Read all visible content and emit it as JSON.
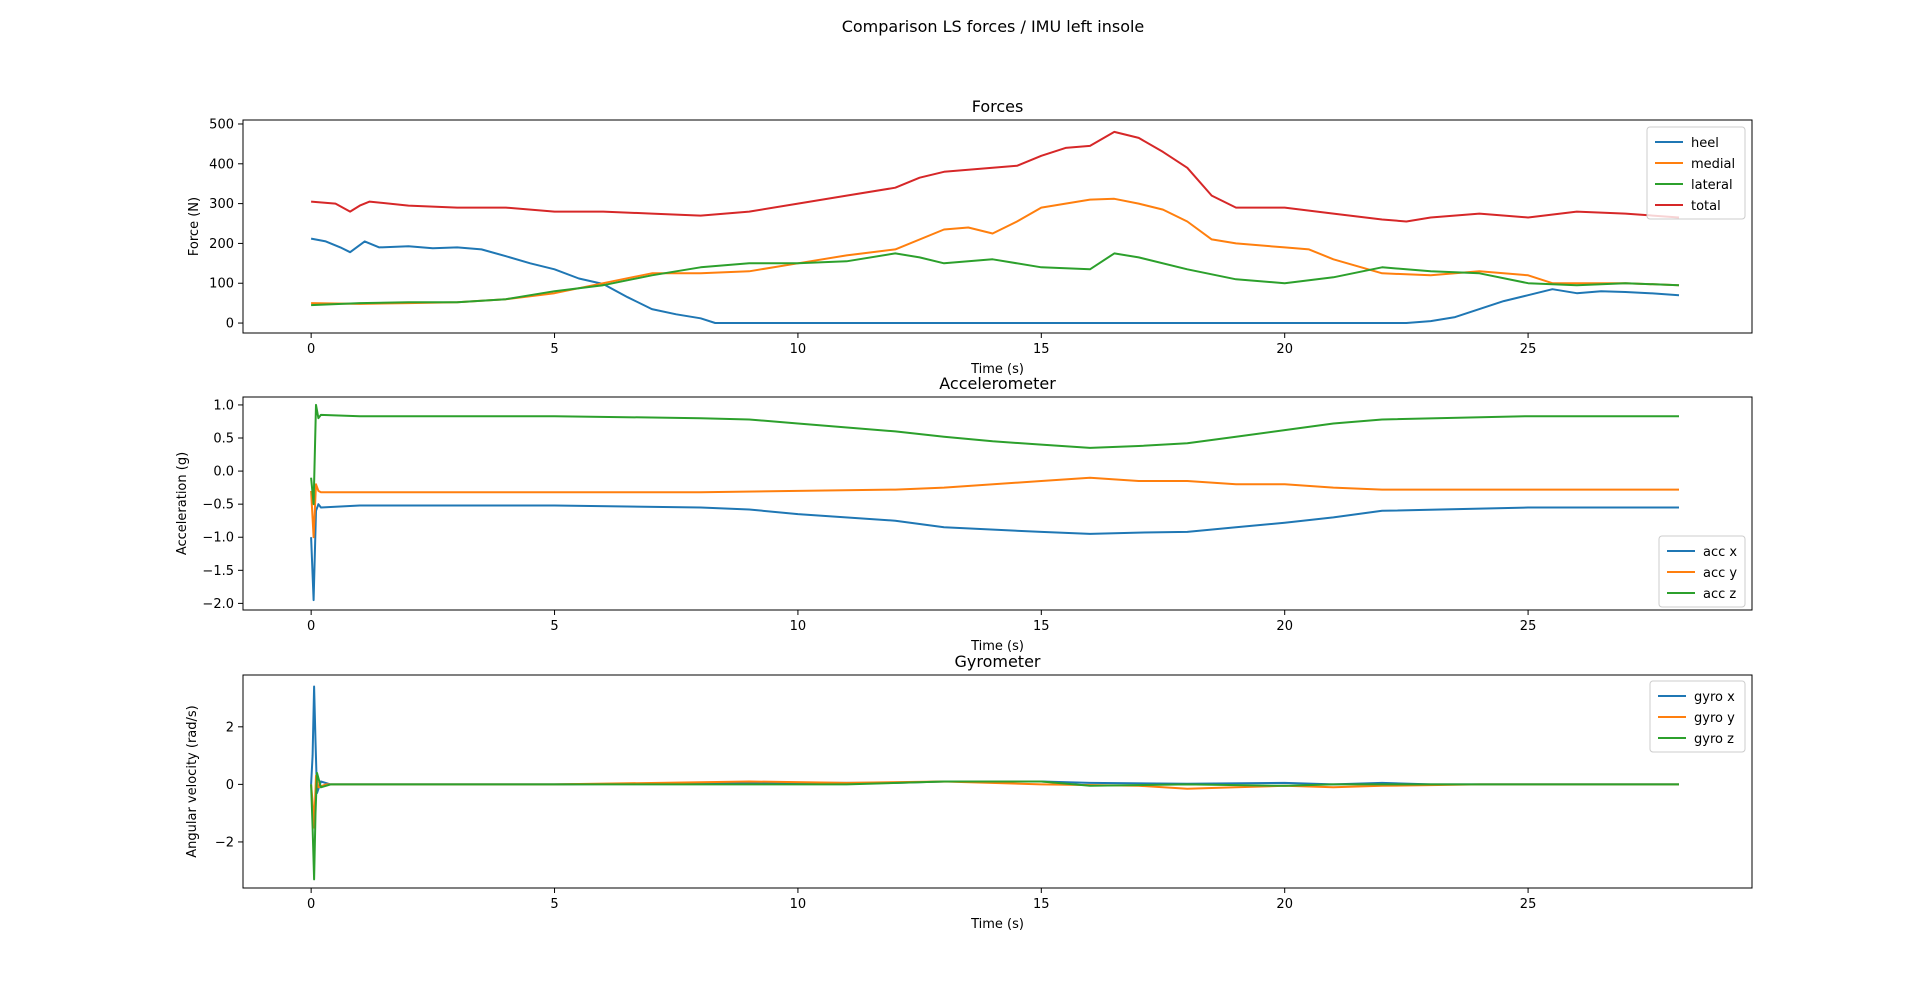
{
  "figure_title": "Comparison LS forces / IMU left insole",
  "colors": {
    "c0": "#1f77b4",
    "c1": "#ff7f0e",
    "c2": "#2ca02c",
    "c3": "#d62728"
  },
  "chart_data": [
    {
      "type": "line",
      "title": "Forces",
      "xlabel": "Time (s)",
      "ylabel": "Force (N)",
      "xlim": [
        -1.4,
        29.6
      ],
      "ylim": [
        -25,
        510
      ],
      "xticks": [
        0,
        5,
        10,
        15,
        20,
        25
      ],
      "yticks": [
        0,
        100,
        200,
        300,
        400,
        500
      ],
      "xtick_labels": [
        "0",
        "5",
        "10",
        "15",
        "20",
        "25"
      ],
      "ytick_labels": [
        "0",
        "100",
        "200",
        "300",
        "400",
        "500"
      ],
      "legend_position": "upper right",
      "series": [
        {
          "name": "heel",
          "color": "#1f77b4",
          "x": [
            0,
            0.3,
            0.6,
            0.8,
            1.1,
            1.4,
            2,
            2.5,
            3,
            3.5,
            4,
            4.5,
            5,
            5.5,
            6,
            6.5,
            7,
            7.5,
            8,
            8.3,
            10,
            15,
            20,
            22.5,
            23,
            23.5,
            24,
            24.5,
            25,
            25.5,
            26,
            26.5,
            27,
            27.5,
            28.1
          ],
          "y": [
            212,
            205,
            190,
            178,
            205,
            190,
            193,
            188,
            190,
            185,
            168,
            150,
            135,
            112,
            98,
            65,
            35,
            22,
            12,
            0,
            0,
            0,
            0,
            0,
            5,
            15,
            35,
            55,
            70,
            85,
            75,
            80,
            78,
            75,
            70
          ]
        },
        {
          "name": "medial",
          "color": "#ff7f0e",
          "x": [
            0,
            1,
            2,
            3,
            4,
            5,
            6,
            7,
            8,
            9,
            10,
            11,
            12,
            13,
            13.5,
            14,
            14.5,
            15,
            15.5,
            16,
            16.5,
            17,
            17.5,
            18,
            18.5,
            19,
            20,
            20.5,
            21,
            22,
            23,
            24,
            25,
            25.5,
            26,
            27,
            28.1
          ],
          "y": [
            50,
            48,
            50,
            52,
            60,
            75,
            100,
            125,
            125,
            130,
            150,
            170,
            185,
            235,
            240,
            225,
            255,
            290,
            300,
            310,
            312,
            300,
            285,
            255,
            210,
            200,
            190,
            185,
            160,
            125,
            120,
            130,
            120,
            100,
            100,
            100,
            95
          ]
        },
        {
          "name": "lateral",
          "color": "#2ca02c",
          "x": [
            0,
            1,
            2,
            3,
            4,
            5,
            6,
            7,
            8,
            9,
            10,
            11,
            12,
            12.5,
            13,
            14,
            15,
            16,
            16.5,
            17,
            18,
            19,
            20,
            21,
            22,
            23,
            24,
            25,
            26,
            27,
            28.1
          ],
          "y": [
            45,
            50,
            52,
            52,
            60,
            80,
            95,
            120,
            140,
            150,
            150,
            155,
            175,
            165,
            150,
            160,
            140,
            135,
            175,
            165,
            135,
            110,
            100,
            115,
            140,
            130,
            125,
            100,
            95,
            100,
            95
          ]
        },
        {
          "name": "total",
          "color": "#d62728",
          "x": [
            0,
            0.5,
            0.8,
            1,
            1.2,
            2,
            3,
            4,
            5,
            6,
            7,
            8,
            9,
            10,
            11,
            12,
            12.5,
            13,
            14,
            14.5,
            15,
            15.5,
            16,
            16.5,
            17,
            17.5,
            18,
            18.5,
            19,
            20,
            21,
            22,
            22.5,
            23,
            24,
            25,
            26,
            27,
            28.1
          ],
          "y": [
            305,
            300,
            280,
            295,
            305,
            295,
            290,
            290,
            280,
            280,
            275,
            270,
            280,
            300,
            320,
            340,
            365,
            380,
            390,
            395,
            420,
            440,
            445,
            480,
            465,
            430,
            390,
            320,
            290,
            290,
            275,
            260,
            255,
            265,
            275,
            265,
            280,
            275,
            265
          ]
        }
      ]
    },
    {
      "type": "line",
      "title": "Accelerometer",
      "xlabel": "Time (s)",
      "ylabel": "Acceleration (g)",
      "xlim": [
        -1.4,
        29.6
      ],
      "ylim": [
        -2.1,
        1.12
      ],
      "xticks": [
        0,
        5,
        10,
        15,
        20,
        25
      ],
      "yticks": [
        -2.0,
        -1.5,
        -1.0,
        -0.5,
        0.0,
        0.5,
        1.0
      ],
      "xtick_labels": [
        "0",
        "5",
        "10",
        "15",
        "20",
        "25"
      ],
      "ytick_labels": [
        "−2.0",
        "−1.5",
        "−1.0",
        "−0.5",
        "0.0",
        "0.5",
        "1.0"
      ],
      "legend_position": "lower right",
      "series": [
        {
          "name": "acc x",
          "color": "#1f77b4",
          "x": [
            0,
            0.05,
            0.1,
            0.15,
            0.2,
            1,
            5,
            8,
            9,
            10,
            12,
            13,
            15,
            16,
            17,
            18,
            19,
            20,
            21,
            22,
            25,
            28.1
          ],
          "y": [
            -1.0,
            -1.95,
            -0.6,
            -0.5,
            -0.55,
            -0.52,
            -0.52,
            -0.55,
            -0.58,
            -0.65,
            -0.75,
            -0.85,
            -0.92,
            -0.95,
            -0.93,
            -0.92,
            -0.85,
            -0.78,
            -0.7,
            -0.6,
            -0.55,
            -0.55
          ]
        },
        {
          "name": "acc y",
          "color": "#ff7f0e",
          "x": [
            0,
            0.05,
            0.1,
            0.15,
            0.2,
            1,
            5,
            8,
            10,
            12,
            13,
            15,
            16,
            17,
            18,
            19,
            20,
            21,
            22,
            25,
            28.1
          ],
          "y": [
            -0.3,
            -1.0,
            -0.2,
            -0.3,
            -0.32,
            -0.32,
            -0.32,
            -0.32,
            -0.3,
            -0.28,
            -0.25,
            -0.15,
            -0.1,
            -0.15,
            -0.15,
            -0.2,
            -0.2,
            -0.25,
            -0.28,
            -0.28,
            -0.28
          ]
        },
        {
          "name": "acc z",
          "color": "#2ca02c",
          "x": [
            0,
            0.05,
            0.1,
            0.15,
            0.2,
            1,
            5,
            8,
            9,
            10,
            12,
            13,
            14,
            15,
            16,
            17,
            18,
            19,
            20,
            21,
            22,
            25,
            28.1
          ],
          "y": [
            -0.1,
            -0.5,
            1.0,
            0.8,
            0.85,
            0.83,
            0.83,
            0.8,
            0.78,
            0.72,
            0.6,
            0.52,
            0.45,
            0.4,
            0.35,
            0.38,
            0.42,
            0.52,
            0.62,
            0.72,
            0.78,
            0.83,
            0.83
          ]
        }
      ]
    },
    {
      "type": "line",
      "title": "Gyrometer",
      "xlabel": "Time (s)",
      "ylabel": "Angular velocity (rad/s)",
      "xlim": [
        -1.4,
        29.6
      ],
      "ylim": [
        -3.6,
        3.8
      ],
      "xticks": [
        0,
        5,
        10,
        15,
        20,
        25
      ],
      "yticks": [
        -2,
        0,
        2
      ],
      "xtick_labels": [
        "0",
        "5",
        "10",
        "15",
        "20",
        "25"
      ],
      "ytick_labels": [
        "−2",
        "0",
        "2"
      ],
      "legend_position": "upper right",
      "series": [
        {
          "name": "gyro x",
          "color": "#1f77b4",
          "x": [
            0,
            0.03,
            0.06,
            0.09,
            0.12,
            0.2,
            0.4,
            5,
            9,
            12,
            13,
            15,
            16,
            18,
            20,
            21,
            22,
            23,
            25,
            28.1
          ],
          "y": [
            0,
            1.0,
            3.4,
            1.5,
            -0.3,
            0.1,
            0.0,
            0.0,
            0.05,
            0.05,
            0.1,
            0.1,
            0.05,
            0.02,
            0.05,
            0.0,
            0.05,
            0.0,
            0.0,
            0.0
          ]
        },
        {
          "name": "gyro y",
          "color": "#ff7f0e",
          "x": [
            0,
            0.03,
            0.06,
            0.1,
            0.15,
            0.3,
            5,
            9,
            11,
            13,
            15,
            17,
            18,
            19,
            20,
            21,
            22,
            24,
            28.1
          ],
          "y": [
            0,
            -0.6,
            -1.5,
            0.3,
            -0.1,
            0.0,
            0.0,
            0.1,
            0.05,
            0.1,
            0.0,
            -0.05,
            -0.15,
            -0.1,
            -0.05,
            -0.1,
            -0.05,
            0.0,
            0.0
          ]
        },
        {
          "name": "gyro z",
          "color": "#2ca02c",
          "x": [
            0,
            0.03,
            0.06,
            0.09,
            0.12,
            0.2,
            0.4,
            5,
            9,
            11,
            13,
            15,
            16,
            18,
            20,
            21,
            22,
            24,
            28.1
          ],
          "y": [
            0,
            -1.5,
            -3.3,
            -1.0,
            0.4,
            -0.1,
            0.0,
            0.0,
            0.0,
            0.0,
            0.1,
            0.1,
            -0.05,
            0.0,
            -0.05,
            0.0,
            0.0,
            0.0,
            0.0
          ]
        }
      ]
    }
  ]
}
